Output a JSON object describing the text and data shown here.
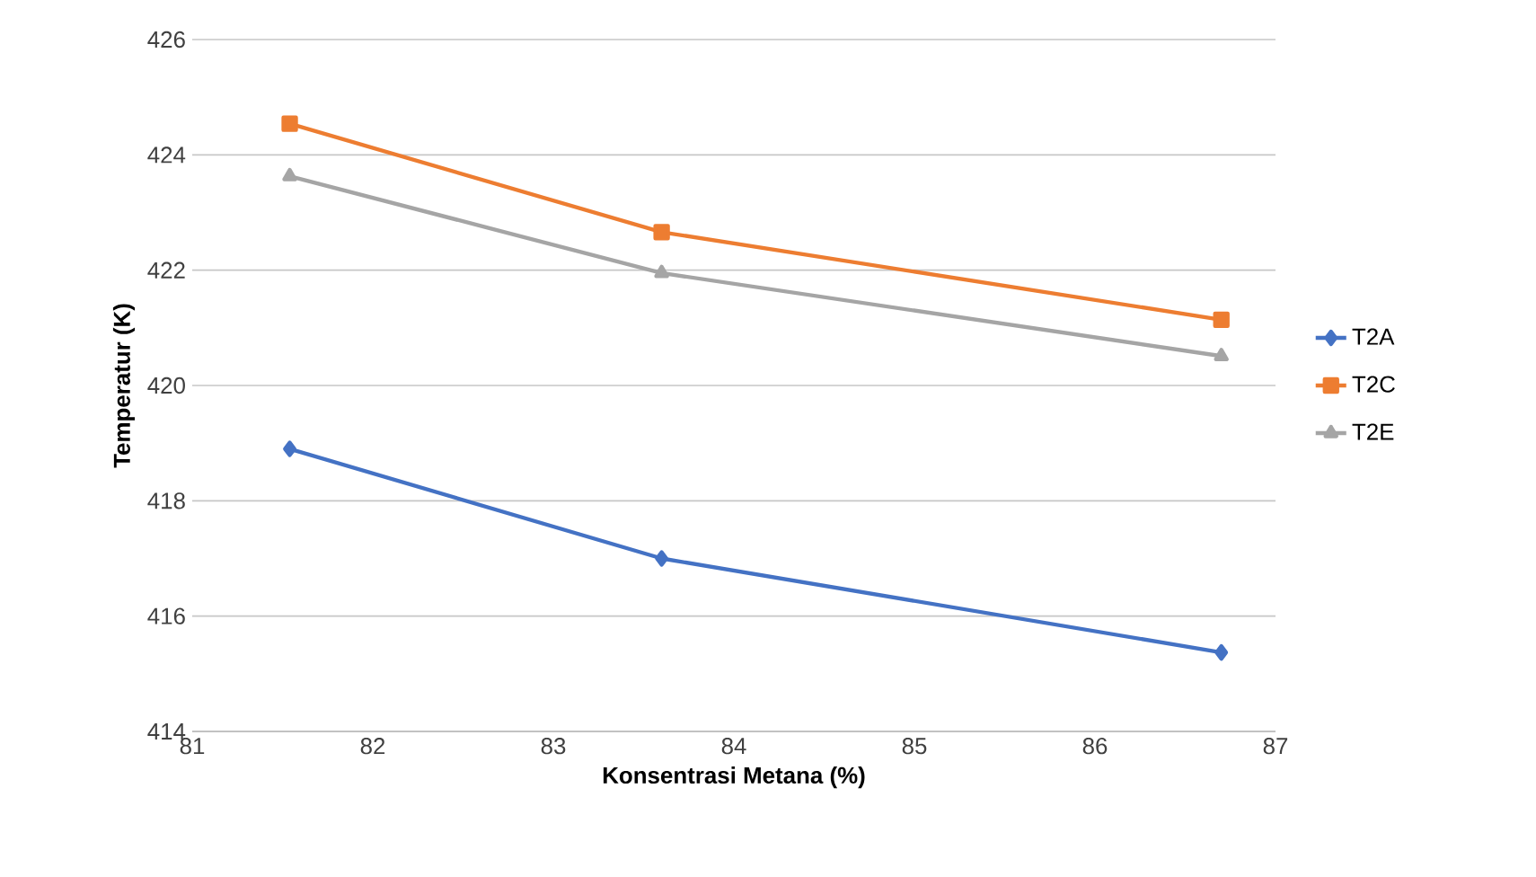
{
  "chart_data": {
    "type": "line",
    "xlabel": "Konsentrasi Metana (%)",
    "ylabel": "Temperatur (K)",
    "x": [
      81.54,
      83.6,
      86.7
    ],
    "series": [
      {
        "name": "T2A",
        "color": "#4472c4",
        "marker": "diamond",
        "values": [
          418.9,
          417.0,
          415.37
        ]
      },
      {
        "name": "T2C",
        "color": "#ed7d31",
        "marker": "square",
        "values": [
          424.54,
          422.66,
          421.14
        ]
      },
      {
        "name": "T2E",
        "color": "#a5a5a5",
        "marker": "triangle",
        "values": [
          423.63,
          421.95,
          420.51
        ]
      }
    ],
    "xlim": [
      81,
      87
    ],
    "xticks": [
      81,
      82,
      83,
      84,
      85,
      86,
      87
    ],
    "ylim": [
      414,
      426
    ],
    "yticks": [
      414,
      416,
      418,
      420,
      422,
      424,
      426
    ],
    "grid": "y",
    "legend": "right",
    "line_style": "solid"
  }
}
